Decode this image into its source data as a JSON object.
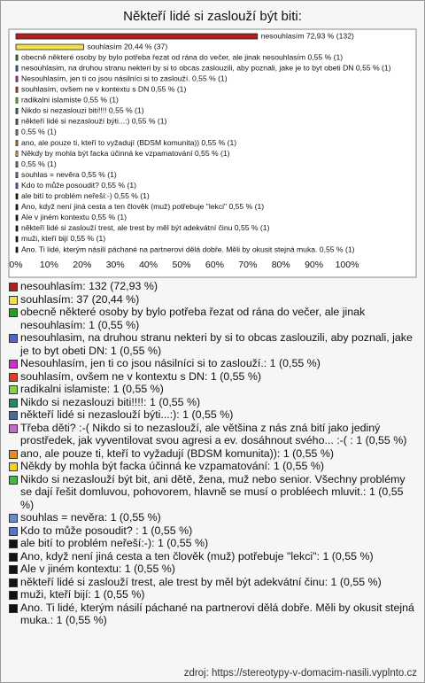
{
  "chart_data": {
    "type": "bar",
    "orientation": "horizontal",
    "title": "Někteří lidé si zaslouží být biti:",
    "values": [
      72.93,
      20.44,
      0.55,
      0.55,
      0.55,
      0.55,
      0.55,
      0.55,
      0.55,
      0.55,
      0.55,
      0.55,
      0.55,
      0.55,
      0.55,
      0.55,
      0.55,
      0.55,
      0.55,
      0.55,
      0.55
    ],
    "value_labels": [
      "nesouhlasím 72,93 % (132)",
      "souhlasím 20,44 % (37)",
      "obecně některé osoby by bylo potřeba řezat od rána do večer, ale jinak nesouhlasím 0,55 % (1)",
      "nesouhlasim, na druhou stranu nekteri by si to obcas zaslouzili, aby poznali, jake je to byt obeti DN 0,55 % (1)",
      "Nesouhlasím, jen ti co jsou násilníci si to zaslouží. 0,55 % (1)",
      "souhlasím, ovšem ne v kontextu s DN 0,55 % (1)",
      "radikalni islamiste 0,55 % (1)",
      "Nikdo si nezaslouzi biti!!!! 0,55 % (1)",
      "někteří lidé si nezaslouží býti...:) 0,55 % (1)",
      "0,55 % (1)",
      "ano, ale pouze ti, kteří to vyžadují (BDSM komunita)) 0,55 % (1)",
      "Někdy by mohla být facka účinná ke vzpamatování 0,55 % (1)",
      "0,55 % (1)",
      "souhlas = nevěra 0,55 % (1)",
      "Kdo to může posoudit?  0,55 % (1)",
      "ale bití to problém neřeší:-) 0,55 % (1)",
      "Ano, když není jiná cesta a ten člověk (muž) potřebuje \"lekci\" 0,55 % (1)",
      "Ale v jiném kontextu 0,55 % (1)",
      "někteří lidé si zaslouží trest, ale trest by měl být adekvátní činu 0,55 % (1)",
      "muži, kteří bijí 0,55 % (1)",
      "Ano. Ti lidé, kterým násilí páchané na partnerovi dělá dobře. Měli by okusit stejná muka. 0,55 % (1)"
    ],
    "colors": [
      "#b3201c",
      "#f2e04a",
      "#22a022",
      "#4a68c8",
      "#d42ad4",
      "#e2401a",
      "#86d24a",
      "#228a62",
      "#4a6a96",
      "#c46ac8",
      "#e88a22",
      "#f2d22a",
      "#44b844",
      "#6a88d8",
      "#5474c8",
      "#111111",
      "#111111",
      "#111111",
      "#111111",
      "#111111",
      "#111111"
    ],
    "legend": [
      "nesouhlasím: 132 (72,93 %)",
      "souhlasím: 37 (20,44 %)",
      "obecně některé osoby by bylo potřeba řezat od rána do večer, ale jinak nesouhlasím: 1 (0,55 %)",
      "nesouhlasim, na druhou stranu nekteri by si to obcas zaslouzili, aby poznali, jake je to byt obeti DN: 1 (0,55 %)",
      "Nesouhlasím, jen ti co jsou násilníci si to zaslouží.: 1 (0,55 %)",
      "souhlasím, ovšem ne v kontextu s DN: 1 (0,55 %)",
      "radikalni islamiste: 1 (0,55 %)",
      "Nikdo si nezaslouzi biti!!!!: 1 (0,55 %)",
      "někteří lidé si nezaslouží býti...:): 1 (0,55 %)",
      "Třeba děti? :-( Nikdo si to nezaslouží, ale většina z nás zná bití jako jediný prostředek, jak vyventilovat svou agresi a ev. dosáhnout svého... :-( : 1 (0,55 %)",
      "ano, ale pouze ti, kteří to vyžadují (BDSM komunita)): 1 (0,55 %)",
      "Někdy by mohla být facka účinná ke vzpamatování: 1 (0,55 %)",
      "Nikdo si nezaslouží být bit, ani dětě, žena, muž nebo senior. Všechny problémy se dají řešit domluvou, pohovorem, hlavně se musí o probléech mluvit.: 1 (0,55 %)",
      "souhlas = nevěra: 1 (0,55 %)",
      "Kdo to může posoudit? : 1 (0,55 %)",
      "ale bití to problém neřeší:-): 1 (0,55 %)",
      "Ano, když není jiná cesta a ten člověk (muž) potřebuje \"lekci\": 1 (0,55 %)",
      "Ale v jiném kontextu: 1 (0,55 %)",
      "někteří lidé si zaslouží trest, ale trest by měl být adekvátní činu: 1 (0,55 %)",
      "muži, kteří bijí: 1 (0,55 %)",
      "Ano. Ti lidé, kterým násilí páchané na partnerovi dělá dobře. Měli by okusit stejná muka.: 1 (0,55 %)"
    ],
    "xlim": [
      0,
      100
    ],
    "xticks": [
      {
        "value": 0,
        "label": "0%"
      },
      {
        "value": 10,
        "label": "10%"
      },
      {
        "value": 20,
        "label": "20%"
      },
      {
        "value": 30,
        "label": "30%"
      },
      {
        "value": 40,
        "label": "40%"
      },
      {
        "value": 50,
        "label": "50%"
      },
      {
        "value": 60,
        "label": "60%"
      },
      {
        "value": 70,
        "label": "70%"
      },
      {
        "value": 80,
        "label": "80%"
      },
      {
        "value": 90,
        "label": "90%"
      },
      {
        "value": 100,
        "label": "100%"
      }
    ],
    "grid": false,
    "source": "zdroj: https://stereotypy-v-domacim-nasili.vyplnto.cz"
  }
}
